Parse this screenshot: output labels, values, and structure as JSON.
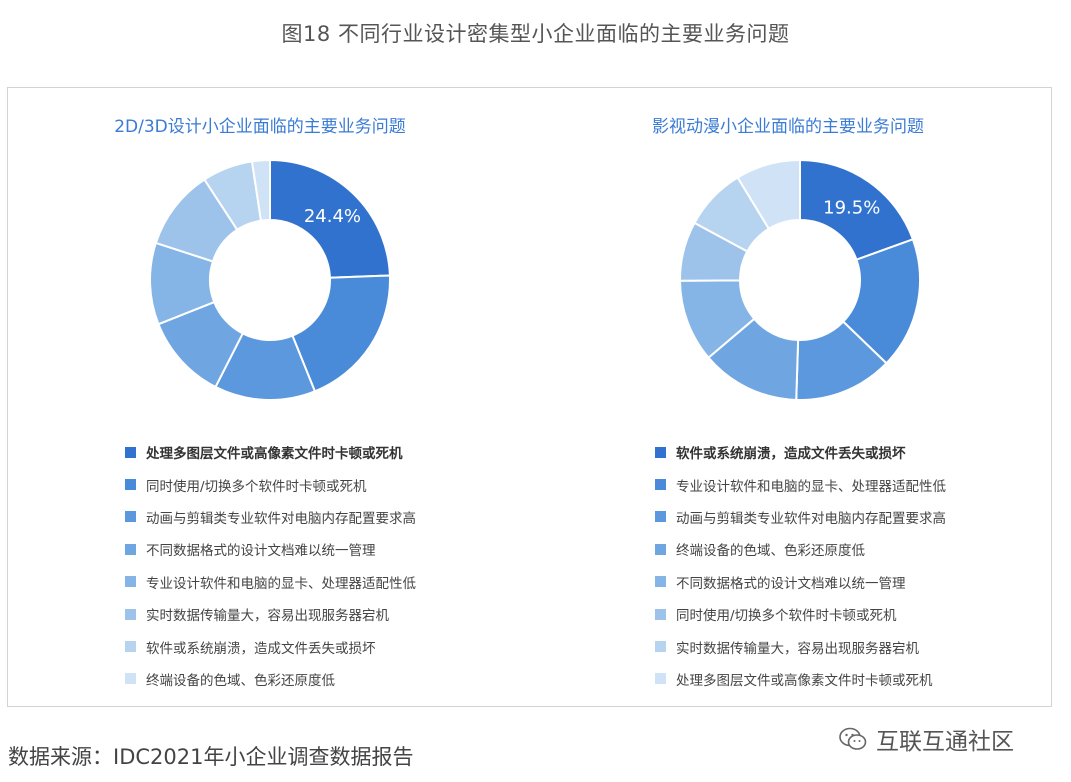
{
  "figure_title": "图18  不同行业设计密集型小企业面临的主要业务问题",
  "source": "数据来源：IDC2021年小企业调查数据报告",
  "watermark": "互联互通社区",
  "colors": [
    "#3272cf",
    "#4a8bd9",
    "#5b98dd",
    "#6fa6e2",
    "#85b4e6",
    "#9dc3eb",
    "#b6d3f0",
    "#d0e2f6"
  ],
  "charts": {
    "left": {
      "title": "2D/3D设计小企业面临的主要业务问题",
      "center_label": "24.4%",
      "legend": [
        "处理多图层文件或高像素文件时卡顿或死机",
        "同时使用/切换多个软件时卡顿或死机",
        "动画与剪辑类专业软件对电脑内存配置要求高",
        "不同数据格式的设计文档难以统一管理",
        "专业设计软件和电脑的显卡、处理器适配性低",
        "实时数据传输量大，容易出现服务器宕机",
        "软件或系统崩溃，造成文件丢失或损坏",
        "终端设备的色域、色彩还原度低"
      ]
    },
    "right": {
      "title": "影视动漫小企业面临的主要业务问题",
      "center_label": "19.5%",
      "legend": [
        "软件或系统崩溃，造成文件丢失或损坏",
        "专业设计软件和电脑的显卡、处理器适配性低",
        "动画与剪辑类专业软件对电脑内存配置要求高",
        "终端设备的色域、色彩还原度低",
        "不同数据格式的设计文档难以统一管理",
        "同时使用/切换多个软件时卡顿或死机",
        "实时数据传输量大，容易出现服务器宕机",
        "处理多图层文件或高像素文件时卡顿或死机"
      ]
    }
  },
  "chart_data": [
    {
      "type": "pie",
      "title": "2D/3D设计小企业面临的主要业务问题",
      "categories": [
        "处理多图层文件或高像素文件时卡顿或死机",
        "同时使用/切换多个软件时卡顿或死机",
        "动画与剪辑类专业软件对电脑内存配置要求高",
        "不同数据格式的设计文档难以统一管理",
        "专业设计软件和电脑的显卡、处理器适配性低",
        "实时数据传输量大，容易出现服务器宕机",
        "软件或系统崩溃，造成文件丢失或损坏",
        "终端设备的色域、色彩还原度低"
      ],
      "values": [
        24.4,
        19.5,
        13.6,
        11.5,
        11.0,
        10.8,
        6.8,
        2.4
      ],
      "legend": "bottom"
    },
    {
      "type": "pie",
      "title": "影视动漫小企业面临的主要业务问题",
      "categories": [
        "软件或系统崩溃，造成文件丢失或损坏",
        "专业设计软件和电脑的显卡、处理器适配性低",
        "动画与剪辑类专业软件对电脑内存配置要求高",
        "终端设备的色域、色彩还原度低",
        "不同数据格式的设计文档难以统一管理",
        "同时使用/切换多个软件时卡顿或死机",
        "实时数据传输量大，容易出现服务器宕机",
        "处理多图层文件或高像素文件时卡顿或死机"
      ],
      "values": [
        19.5,
        17.7,
        13.3,
        13.3,
        11.1,
        8.0,
        8.4,
        8.7
      ],
      "legend": "bottom"
    }
  ]
}
